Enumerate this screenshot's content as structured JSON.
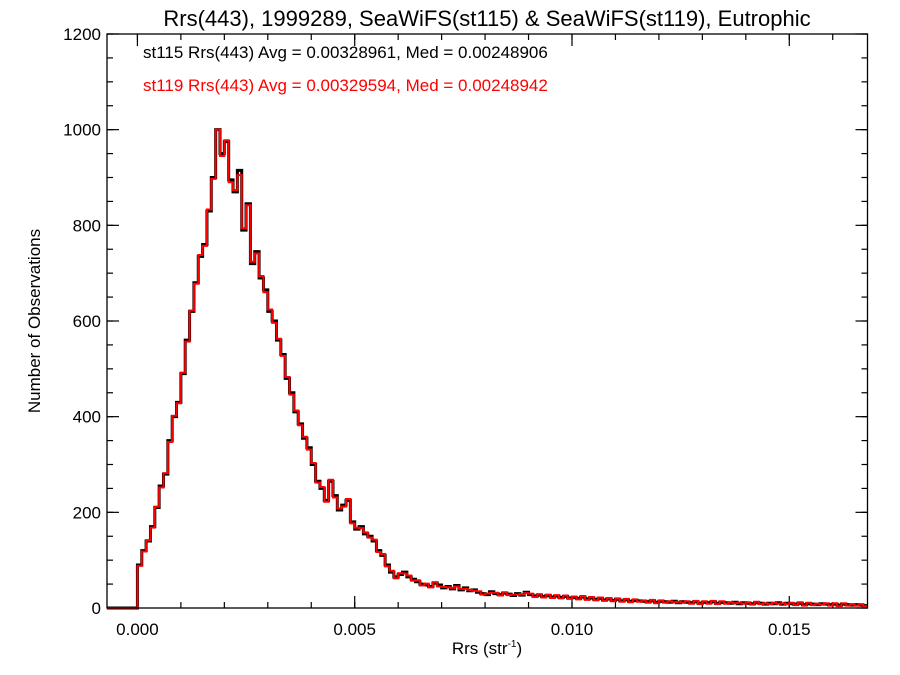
{
  "chart_data": {
    "type": "line",
    "style": "histogram-step",
    "title": "Rrs(443), 1999289, SeaWiFS(st115) & SeaWiFS(st119), Eutrophic",
    "xlabel": "Rrs (str",
    "xlabel_sup": "-1",
    "xlabel_close": ")",
    "ylabel": "Number of Observations",
    "xlim": [
      -0.0007,
      0.0168
    ],
    "ylim": [
      0,
      1200
    ],
    "xticks": [
      0.0,
      0.005,
      0.01,
      0.015
    ],
    "xtick_labels": [
      "0.000",
      "0.005",
      "0.010",
      "0.015"
    ],
    "xminor_step": 0.001,
    "yticks": [
      0,
      200,
      400,
      600,
      800,
      1000,
      1200
    ],
    "ytick_labels": [
      "0",
      "200",
      "400",
      "600",
      "800",
      "1000",
      "1200"
    ],
    "yminor_step": 50,
    "grid": false,
    "bin_start": 0.0,
    "bin_width": 0.0001,
    "legend_position": "top-left",
    "annotations": [
      {
        "text": "st115 Rrs(443) Avg = 0.00328961, Med = 0.00248906",
        "color": "#000000"
      },
      {
        "text": "st119 Rrs(443) Avg = 0.00329594, Med = 0.00248942",
        "color": "#ff0000"
      }
    ],
    "series": [
      {
        "name": "st115",
        "color": "#000000",
        "values": [
          90,
          120,
          140,
          170,
          210,
          255,
          280,
          350,
          400,
          430,
          490,
          560,
          620,
          680,
          735,
          760,
          830,
          900,
          1000,
          950,
          975,
          895,
          870,
          915,
          790,
          845,
          720,
          745,
          690,
          665,
          620,
          600,
          560,
          530,
          480,
          450,
          410,
          385,
          355,
          335,
          300,
          265,
          250,
          225,
          265,
          235,
          205,
          215,
          225,
          180,
          165,
          170,
          155,
          150,
          140,
          120,
          110,
          90,
          75,
          65,
          70,
          75,
          65,
          60,
          55,
          50,
          48,
          45,
          52,
          48,
          42,
          45,
          40,
          47,
          38,
          42,
          36,
          38,
          33,
          30,
          28,
          34,
          30,
          28,
          31,
          29,
          26,
          30,
          27,
          33,
          28,
          25,
          27,
          24,
          26,
          23,
          25,
          22,
          24,
          21,
          22,
          20,
          23,
          19,
          21,
          18,
          20,
          17,
          19,
          16,
          18,
          15,
          17,
          14,
          16,
          15,
          14,
          13,
          15,
          12,
          14,
          13,
          12,
          14,
          11,
          13,
          12,
          11,
          13,
          10,
          12,
          11,
          13,
          10,
          12,
          11,
          10,
          12,
          9,
          11,
          10,
          9,
          11,
          10,
          8,
          10,
          9,
          11,
          8,
          10,
          9,
          8,
          10,
          7,
          9,
          8,
          7,
          9,
          8,
          7,
          8,
          6,
          8,
          7,
          6,
          7,
          6,
          5
        ]
      },
      {
        "name": "st119",
        "color": "#ff0000",
        "values": [
          88,
          118,
          142,
          168,
          212,
          252,
          282,
          347,
          402,
          428,
          492,
          557,
          622,
          678,
          738,
          757,
          833,
          897,
          1000,
          945,
          978,
          890,
          874,
          905,
          794,
          842,
          724,
          741,
          694,
          660,
          624,
          596,
          563,
          527,
          483,
          446,
          413,
          382,
          358,
          331,
          303,
          262,
          253,
          222,
          268,
          231,
          208,
          212,
          228,
          177,
          168,
          167,
          158,
          147,
          143,
          117,
          113,
          87,
          78,
          62,
          73,
          72,
          68,
          57,
          58,
          47,
          51,
          43,
          54,
          45,
          44,
          43,
          42,
          45,
          40,
          40,
          38,
          36,
          35,
          28,
          30,
          32,
          32,
          26,
          33,
          27,
          28,
          28,
          29,
          31,
          30,
          23,
          29,
          22,
          28,
          21,
          27,
          20,
          26,
          19,
          24,
          18,
          25,
          17,
          23,
          16,
          22,
          15,
          21,
          14,
          20,
          13,
          19,
          12,
          18,
          13,
          16,
          11,
          17,
          10,
          16,
          11,
          14,
          12,
          13,
          11,
          14,
          9,
          15,
          8,
          14,
          9,
          15,
          8,
          14,
          9,
          12,
          10,
          11,
          9,
          12,
          7,
          13,
          8,
          10,
          8,
          11,
          9,
          10,
          8,
          11,
          6,
          12,
          5,
          11,
          6,
          9,
          7,
          10,
          5,
          10,
          4,
          10,
          5,
          8,
          5,
          8,
          4
        ]
      }
    ]
  }
}
